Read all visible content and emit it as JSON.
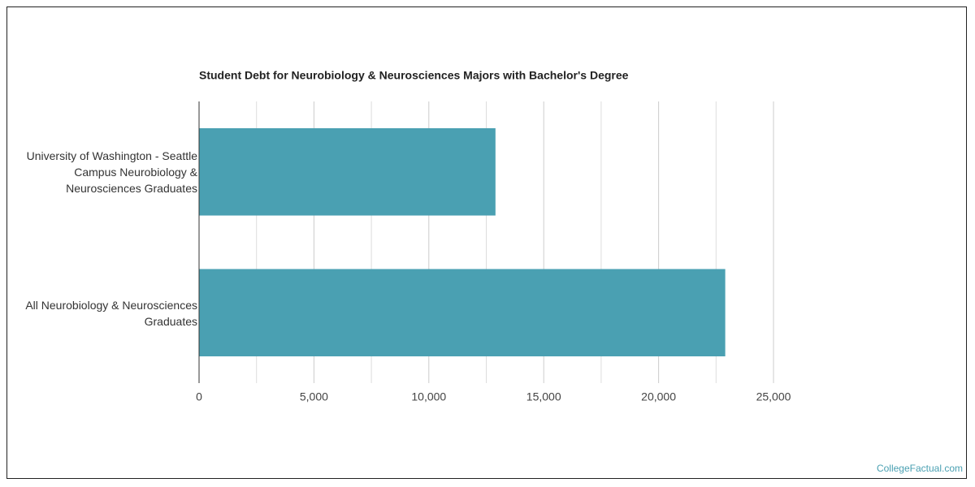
{
  "chart_data": {
    "type": "bar",
    "orientation": "horizontal",
    "title": "Student Debt for Neurobiology & Neurosciences Majors with Bachelor's Degree",
    "categories": [
      "University of Washington - Seattle Campus Neurobiology & Neurosciences Graduates",
      "All Neurobiology & Neurosciences Graduates"
    ],
    "values": [
      12900,
      22900
    ],
    "color": "#4aa0b2",
    "xlim": [
      0,
      25000
    ],
    "xticks": [
      0,
      {
        "value": 5000,
        "label": "5,000"
      },
      {
        "value": 10000,
        "label": "10,000"
      },
      {
        "value": 15000,
        "label": "15,000"
      },
      {
        "value": 20000,
        "label": "20,000"
      },
      {
        "value": 25000,
        "label": "25,000"
      }
    ],
    "minor_xticks": [
      2500,
      7500,
      12500,
      17500,
      22500
    ],
    "grid": true,
    "source": "CollegeFactual.com"
  }
}
